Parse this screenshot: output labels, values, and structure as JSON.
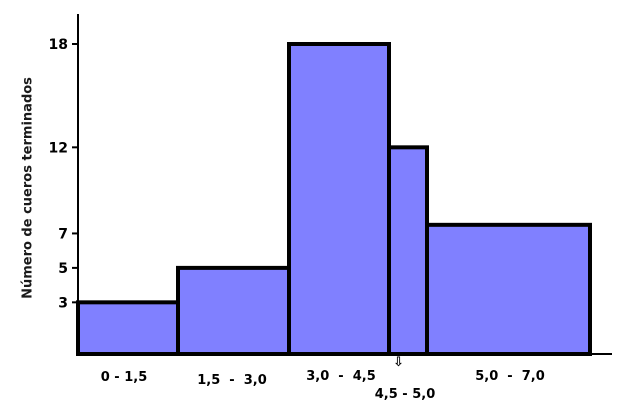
{
  "chart_data": {
    "type": "bar",
    "title": "",
    "xlabel": "",
    "ylabel": "Número de cueros terminados",
    "categories": [
      "0 - 1,5",
      "1,5  -  3,0",
      "3,0  -  4,5",
      "4,5 - 5,0",
      "5,0  -  7,0"
    ],
    "bins": [
      {
        "label": "0 - 1,5",
        "start": 0,
        "end": 1.5,
        "value": 3
      },
      {
        "label": "1,5  -  3,0",
        "start": 1.5,
        "end": 3.0,
        "value": 5
      },
      {
        "label": "3,0  -  4,5",
        "start": 3.0,
        "end": 4.5,
        "value": 18
      },
      {
        "label": "4,5 - 5,0",
        "start": 4.5,
        "end": 5.0,
        "value": 12
      },
      {
        "label": "5,0  -  7,0",
        "start": 5.0,
        "end": 7.0,
        "value": 7.5
      }
    ],
    "yticks": [
      3,
      5,
      7,
      12,
      18
    ],
    "ylim": [
      0,
      20
    ],
    "bar_color": "#8080ff",
    "outline_color": "#000000",
    "grid": false,
    "legend": "none",
    "pointer_glyph": "⇩"
  }
}
